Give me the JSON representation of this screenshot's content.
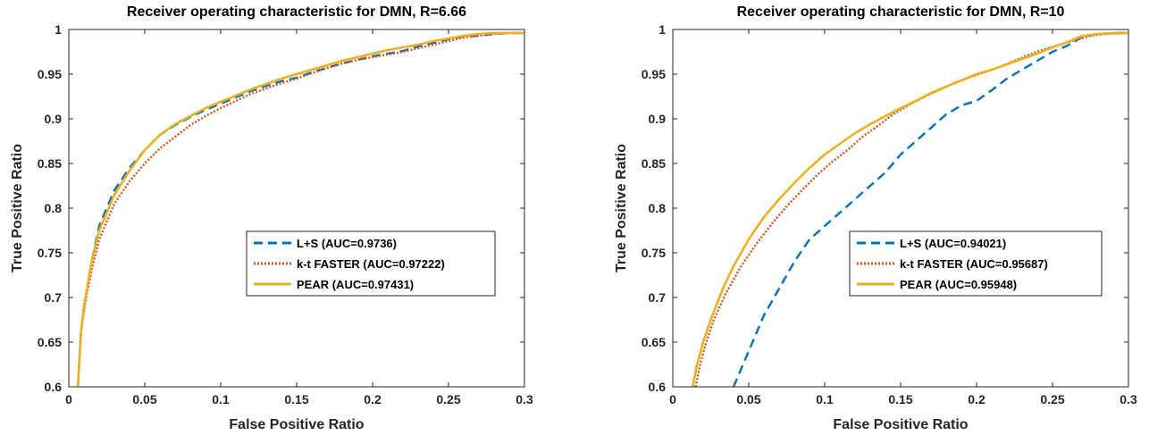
{
  "chart_data": [
    {
      "type": "line",
      "title": "Receiver operating characteristic for DMN, R=6.66",
      "xlabel": "False Positive Ratio",
      "ylabel": "True Positive Ratio",
      "xlim": [
        0,
        0.3
      ],
      "ylim": [
        0.6,
        1
      ],
      "xticks": [
        "0",
        "0.05",
        "0.1",
        "0.15",
        "0.2",
        "0.25",
        "0.3"
      ],
      "yticks": [
        "0.6",
        "0.65",
        "0.7",
        "0.75",
        "0.8",
        "0.85",
        "0.9",
        "0.95",
        "1"
      ],
      "grid": false,
      "legend_position": "right-middle",
      "series": [
        {
          "name": "L+S (AUC=0.9736)",
          "color": "#0072BD",
          "style": "dashed",
          "x": [
            0.006,
            0.007,
            0.008,
            0.01,
            0.012,
            0.015,
            0.02,
            0.025,
            0.03,
            0.04,
            0.05,
            0.06,
            0.07,
            0.08,
            0.09,
            0.1,
            0.11,
            0.12,
            0.13,
            0.14,
            0.15,
            0.16,
            0.17,
            0.18,
            0.19,
            0.2,
            0.21,
            0.22,
            0.23,
            0.24,
            0.25,
            0.26,
            0.27,
            0.28,
            0.29,
            0.3
          ],
          "y": [
            0.6,
            0.63,
            0.66,
            0.69,
            0.71,
            0.74,
            0.78,
            0.8,
            0.82,
            0.845,
            0.865,
            0.882,
            0.893,
            0.902,
            0.91,
            0.917,
            0.924,
            0.931,
            0.937,
            0.942,
            0.946,
            0.952,
            0.957,
            0.962,
            0.966,
            0.97,
            0.973,
            0.976,
            0.981,
            0.985,
            0.989,
            0.992,
            0.993,
            0.995,
            0.996,
            0.996
          ]
        },
        {
          "name": "k-t FASTER (AUC=0.97222)",
          "color": "#D95319",
          "style": "dotted",
          "x": [
            0.006,
            0.007,
            0.008,
            0.01,
            0.012,
            0.015,
            0.02,
            0.025,
            0.03,
            0.04,
            0.05,
            0.06,
            0.07,
            0.08,
            0.09,
            0.1,
            0.11,
            0.12,
            0.13,
            0.14,
            0.15,
            0.16,
            0.17,
            0.18,
            0.19,
            0.2,
            0.21,
            0.22,
            0.23,
            0.24,
            0.25,
            0.26,
            0.27,
            0.28,
            0.29,
            0.3
          ],
          "y": [
            0.6,
            0.63,
            0.66,
            0.685,
            0.705,
            0.73,
            0.765,
            0.785,
            0.805,
            0.83,
            0.85,
            0.867,
            0.88,
            0.893,
            0.903,
            0.912,
            0.92,
            0.928,
            0.934,
            0.94,
            0.945,
            0.951,
            0.957,
            0.962,
            0.966,
            0.969,
            0.972,
            0.975,
            0.979,
            0.983,
            0.987,
            0.991,
            0.993,
            0.995,
            0.996,
            0.996
          ]
        },
        {
          "name": "PEAR (AUC=0.97431)",
          "color": "#EDB120",
          "style": "solid",
          "x": [
            0.006,
            0.007,
            0.008,
            0.01,
            0.012,
            0.015,
            0.02,
            0.025,
            0.03,
            0.04,
            0.05,
            0.06,
            0.07,
            0.08,
            0.09,
            0.1,
            0.11,
            0.12,
            0.13,
            0.14,
            0.15,
            0.16,
            0.17,
            0.18,
            0.19,
            0.2,
            0.21,
            0.22,
            0.23,
            0.24,
            0.25,
            0.26,
            0.27,
            0.28,
            0.29,
            0.3
          ],
          "y": [
            0.6,
            0.63,
            0.66,
            0.69,
            0.71,
            0.74,
            0.775,
            0.795,
            0.815,
            0.842,
            0.865,
            0.882,
            0.894,
            0.903,
            0.912,
            0.919,
            0.926,
            0.933,
            0.939,
            0.945,
            0.95,
            0.955,
            0.96,
            0.965,
            0.969,
            0.973,
            0.977,
            0.98,
            0.983,
            0.987,
            0.99,
            0.993,
            0.995,
            0.996,
            0.996,
            0.996
          ]
        }
      ]
    },
    {
      "type": "line",
      "title": "Receiver operating characteristic for DMN, R=10",
      "xlabel": "False Positive Ratio",
      "ylabel": "True Positive Ratio",
      "xlim": [
        0,
        0.3
      ],
      "ylim": [
        0.6,
        1
      ],
      "xticks": [
        "0",
        "0.05",
        "0.1",
        "0.15",
        "0.2",
        "0.25",
        "0.3"
      ],
      "yticks": [
        "0.6",
        "0.65",
        "0.7",
        "0.75",
        "0.8",
        "0.85",
        "0.9",
        "0.95",
        "1"
      ],
      "grid": false,
      "legend_position": "right-middle",
      "series": [
        {
          "name": "L+S (AUC=0.94021)",
          "color": "#0072BD",
          "style": "dashed",
          "x": [
            0.04,
            0.045,
            0.05,
            0.055,
            0.06,
            0.07,
            0.08,
            0.09,
            0.1,
            0.11,
            0.12,
            0.13,
            0.14,
            0.15,
            0.16,
            0.17,
            0.18,
            0.19,
            0.2,
            0.21,
            0.22,
            0.23,
            0.24,
            0.25,
            0.26,
            0.27,
            0.28,
            0.29,
            0.3
          ],
          "y": [
            0.6,
            0.62,
            0.64,
            0.66,
            0.68,
            0.71,
            0.74,
            0.765,
            0.78,
            0.795,
            0.81,
            0.825,
            0.84,
            0.86,
            0.875,
            0.89,
            0.905,
            0.915,
            0.92,
            0.932,
            0.945,
            0.955,
            0.965,
            0.975,
            0.982,
            0.992,
            0.995,
            0.996,
            0.996
          ]
        },
        {
          "name": "k-t FASTER (AUC=0.95687)",
          "color": "#D95319",
          "style": "dotted",
          "x": [
            0.015,
            0.018,
            0.022,
            0.027,
            0.035,
            0.045,
            0.055,
            0.065,
            0.075,
            0.085,
            0.095,
            0.105,
            0.115,
            0.125,
            0.135,
            0.145,
            0.155,
            0.165,
            0.175,
            0.185,
            0.195,
            0.205,
            0.215,
            0.225,
            0.235,
            0.245,
            0.255,
            0.265,
            0.275,
            0.285,
            0.3
          ],
          "y": [
            0.6,
            0.625,
            0.65,
            0.675,
            0.705,
            0.735,
            0.76,
            0.782,
            0.802,
            0.82,
            0.837,
            0.852,
            0.865,
            0.88,
            0.892,
            0.905,
            0.915,
            0.924,
            0.932,
            0.94,
            0.946,
            0.952,
            0.958,
            0.965,
            0.972,
            0.978,
            0.983,
            0.988,
            0.993,
            0.995,
            0.996
          ]
        },
        {
          "name": "PEAR (AUC=0.95948)",
          "color": "#EDB120",
          "style": "solid",
          "x": [
            0.013,
            0.016,
            0.02,
            0.025,
            0.033,
            0.04,
            0.05,
            0.06,
            0.07,
            0.08,
            0.09,
            0.1,
            0.11,
            0.12,
            0.13,
            0.14,
            0.15,
            0.16,
            0.17,
            0.18,
            0.19,
            0.2,
            0.21,
            0.22,
            0.23,
            0.24,
            0.25,
            0.26,
            0.27,
            0.28,
            0.29,
            0.3
          ],
          "y": [
            0.6,
            0.625,
            0.65,
            0.675,
            0.71,
            0.735,
            0.765,
            0.79,
            0.81,
            0.828,
            0.845,
            0.86,
            0.872,
            0.884,
            0.894,
            0.903,
            0.912,
            0.92,
            0.929,
            0.936,
            0.943,
            0.95,
            0.955,
            0.961,
            0.967,
            0.973,
            0.98,
            0.986,
            0.993,
            0.995,
            0.996,
            0.996
          ]
        }
      ]
    }
  ]
}
